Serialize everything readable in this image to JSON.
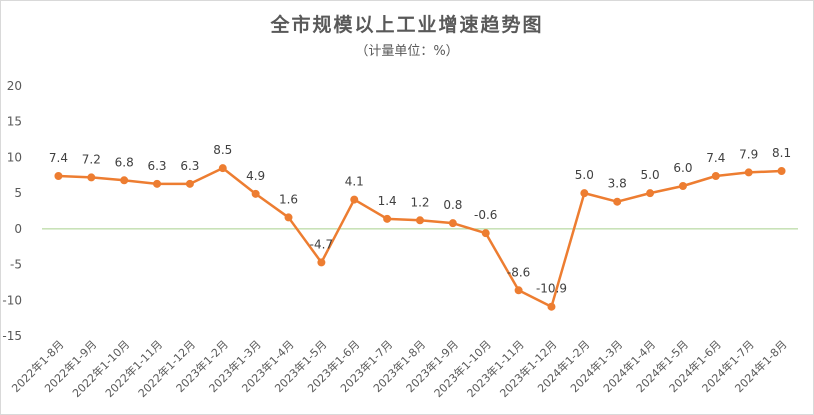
{
  "chart_data": {
    "type": "line",
    "title": "全市规模以上工业增速趋势图",
    "subtitle": "（计量单位：%）",
    "xlabel": "",
    "ylabel": "",
    "ylim": [
      -15,
      20
    ],
    "yticks": [
      -15,
      -10,
      -5,
      0,
      5,
      10,
      15,
      20
    ],
    "grid": false,
    "legend": "none",
    "categories": [
      "2022年1-8月",
      "2022年1-9月",
      "2022年1-10月",
      "2022年1-11月",
      "2022年1-12月",
      "2023年1-2月",
      "2023年1-3月",
      "2023年1-4月",
      "2023年1-5月",
      "2023年1-6月",
      "2023年1-7月",
      "2023年1-8月",
      "2023年1-9月",
      "2023年1-10月",
      "2023年1-11月",
      "2023年1-12月",
      "2024年1-2月",
      "2024年1-3月",
      "2024年1-4月",
      "2024年1-5月",
      "2024年1-6月",
      "2024年1-7月",
      "2024年1-8月"
    ],
    "series": [
      {
        "values": [
          7.4,
          7.2,
          6.8,
          6.3,
          6.3,
          8.5,
          4.9,
          1.6,
          -4.7,
          4.1,
          1.4,
          1.2,
          0.8,
          -0.6,
          -8.6,
          -10.9,
          5.0,
          3.8,
          5.0,
          6.0,
          7.4,
          7.9,
          8.1
        ],
        "labels": [
          "7.4",
          "7.2",
          "6.8",
          "6.3",
          "6.3",
          "8.5",
          "4.9",
          "1.6",
          "-4.7",
          "4.1",
          "1.4",
          "1.2",
          "0.8",
          "-0.6",
          "-8.6",
          "-10.9",
          "5.0",
          "3.8",
          "5.0",
          "6.0",
          "7.4",
          "7.9",
          "8.1"
        ],
        "color": "#ed7d31"
      }
    ],
    "zero_line_color": "#a9d18e"
  }
}
